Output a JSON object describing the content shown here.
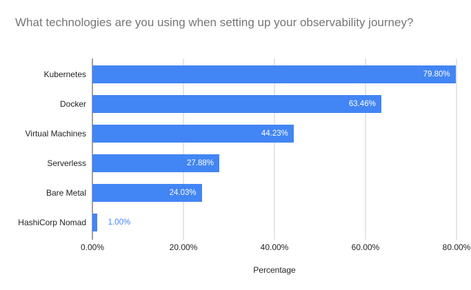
{
  "colors": {
    "bar": "#4285f4",
    "value_label_inside": "#ffffff",
    "value_label_outside": "#4285f4",
    "title_text": "#757575",
    "axis_text": "#222222",
    "gridline": "#cccccc",
    "axis_line": "#424242",
    "background": "#ffffff"
  },
  "chart_data": {
    "type": "bar",
    "orientation": "horizontal",
    "title": "What technologies are you using when setting up your observability journey?",
    "categories": [
      "Kubernetes",
      "Docker",
      "Virtual Machines",
      "Serverless",
      "Bare Metal",
      "HashiCorp Nomad"
    ],
    "values": [
      79.8,
      63.46,
      44.23,
      27.88,
      24.03,
      1.0
    ],
    "value_labels": [
      "79.80%",
      "63.46%",
      "44.23%",
      "27.88%",
      "24.03%",
      "1.00%"
    ],
    "xlabel": "Percentage",
    "ylabel": "",
    "xlim": [
      0,
      80
    ],
    "x_ticks": [
      "0.00%",
      "20.00%",
      "40.00%",
      "60.00%",
      "80.00%"
    ],
    "x_tick_values": [
      0,
      20,
      40,
      60,
      80
    ],
    "grid": true,
    "legend": "none"
  }
}
